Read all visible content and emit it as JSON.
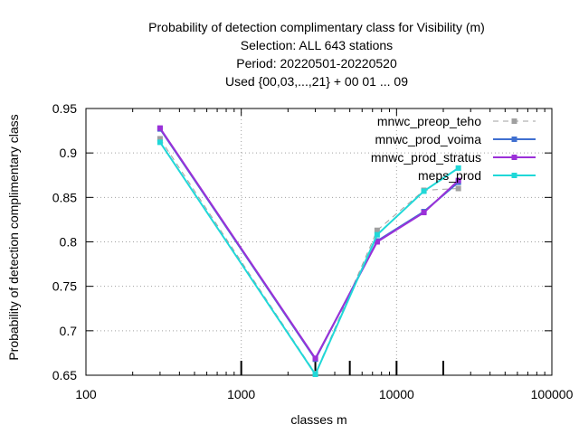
{
  "chart_data": {
    "type": "line",
    "title_lines": [
      "Probability of detection complimentary class  for Visibility (m)",
      "Selection: ALL    643 stations",
      "Period: 20220501-20220520",
      "Used {00,03,...,21} + 00 01 ... 09"
    ],
    "xlabel": "classes m",
    "ylabel": "Probability of detection complimentary class",
    "x_scale": "log",
    "xlim": [
      100,
      100000
    ],
    "ylim": [
      0.65,
      0.95
    ],
    "x_ticks": [
      100,
      1000,
      10000,
      100000
    ],
    "x_tick_labels": [
      "100",
      "1000",
      "10000",
      "100000"
    ],
    "y_ticks": [
      0.65,
      0.7,
      0.75,
      0.8,
      0.85,
      0.9,
      0.95
    ],
    "y_tick_labels": [
      "0.65",
      "0.7",
      "0.75",
      "0.8",
      "0.85",
      "0.9",
      "0.95"
    ],
    "grid": true,
    "legend_position": "top-right",
    "class_markers": [
      1000,
      3000,
      5000,
      10000,
      20000
    ],
    "series": [
      {
        "name": "mnwc_preop_teho",
        "color": "#a0a0a0",
        "dashed": true,
        "x": [
          300,
          3000,
          7500,
          15000,
          25000
        ],
        "y": [
          0.916,
          0.652,
          0.813,
          0.858,
          0.86
        ]
      },
      {
        "name": "mnwc_prod_voima",
        "color": "#3f6fd0",
        "dashed": false,
        "x": [
          300,
          3000,
          7500,
          15000,
          25000
        ],
        "y": [
          0.927,
          0.668,
          0.801,
          0.834,
          0.867
        ]
      },
      {
        "name": "mnwc_prod_stratus",
        "color": "#9b30d8",
        "dashed": false,
        "x": [
          300,
          3000,
          7500,
          15000,
          25000
        ],
        "y": [
          0.928,
          0.669,
          0.8,
          0.833,
          0.869
        ]
      },
      {
        "name": "meps_prod",
        "color": "#20d8d8",
        "dashed": false,
        "x": [
          300,
          3000,
          7500,
          15000,
          25000
        ],
        "y": [
          0.912,
          0.651,
          0.808,
          0.857,
          0.883
        ]
      }
    ]
  }
}
